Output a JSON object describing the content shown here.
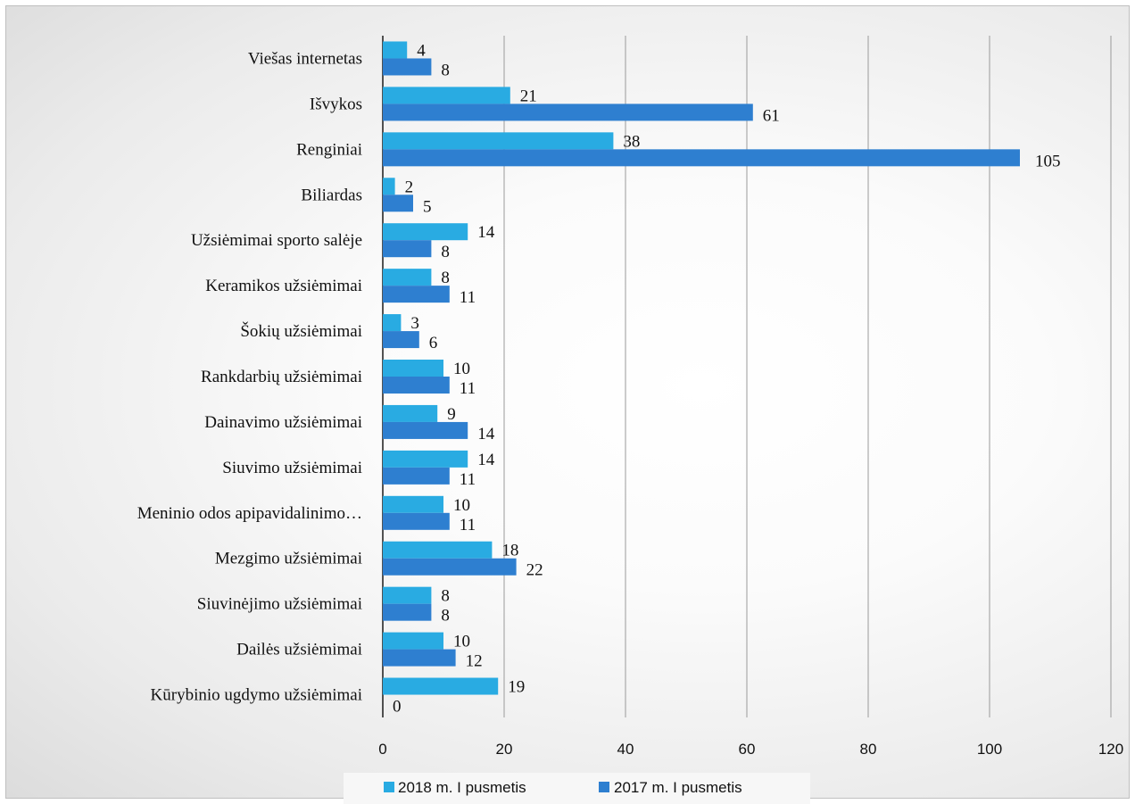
{
  "chart_data": {
    "type": "bar",
    "orientation": "horizontal",
    "categories": [
      "Viešas internetas",
      "Išvykos",
      "Renginiai",
      "Biliardas",
      "Užsiėmimai sporto salėje",
      "Keramikos užsiėmimai",
      "Šokių užsiėmimai",
      "Rankdarbių užsiėmimai",
      "Dainavimo užsiėmimai",
      "Siuvimo užsiėmimai",
      "Meninio odos apipavidalinimo…",
      "Mezgimo užsiėmimai",
      "Siuvinėjimo užsiėmimai",
      "Dailės užsiėmimai",
      "Kūrybinio ugdymo užsiėmimai"
    ],
    "series": [
      {
        "name": "2018 m. I pusmetis",
        "color": "#29abe2",
        "values": [
          4,
          21,
          38,
          2,
          14,
          8,
          3,
          10,
          9,
          14,
          10,
          18,
          8,
          10,
          19
        ]
      },
      {
        "name": "2017 m. I pusmetis",
        "color": "#2e7fd0",
        "values": [
          8,
          61,
          105,
          5,
          8,
          11,
          6,
          11,
          14,
          11,
          11,
          22,
          8,
          12,
          0
        ]
      }
    ],
    "xlim": [
      0,
      120
    ],
    "xticks": [
      0,
      20,
      40,
      60,
      80,
      100,
      120
    ],
    "grid": "vertical",
    "legend": "bottom",
    "title": "",
    "xlabel": "",
    "ylabel": ""
  }
}
